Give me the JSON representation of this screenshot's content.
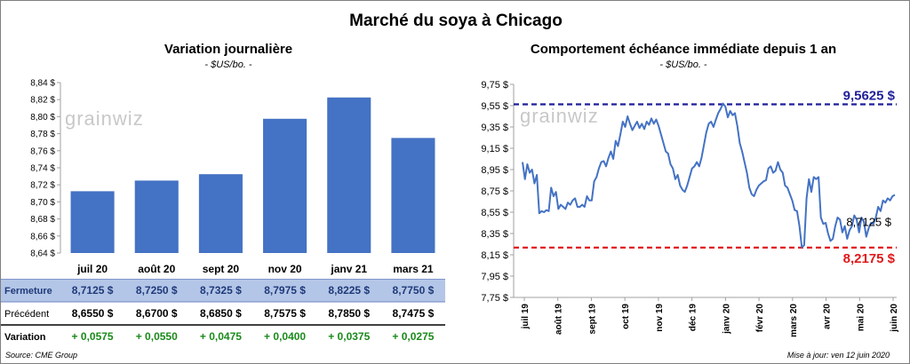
{
  "title": "Marché du soya à Chicago",
  "colors": {
    "bar": "#4472c4",
    "line": "#4472c4",
    "high_line": "#1f1f9a",
    "low_line": "#e0191b",
    "table_header_bg": "#b4c6e7",
    "positive": "#1a8a1a"
  },
  "watermark": "grainwiz",
  "left": {
    "title": "Variation  journalière",
    "unit": "- $US/bo. -",
    "chart_data": {
      "type": "bar",
      "categories": [
        "juil 20",
        "août 20",
        "sept 20",
        "nov 20",
        "janv 21",
        "mars 21"
      ],
      "values": [
        8.7125,
        8.725,
        8.7325,
        8.7975,
        8.8225,
        8.775
      ],
      "ylim": [
        8.64,
        8.84
      ],
      "yticks": [
        "8,64 $",
        "8,66 $",
        "8,68 $",
        "8,70 $",
        "8,72 $",
        "8,74 $",
        "8,76 $",
        "8,78 $",
        "8,80 $",
        "8,82 $",
        "8,84 $"
      ],
      "grid": false
    },
    "table": {
      "rows": [
        {
          "label": "Fermeture",
          "values": [
            "8,7125  $",
            "8,7250  $",
            "8,7325  $",
            "8,7975  $",
            "8,8225  $",
            "8,7750  $"
          ]
        },
        {
          "label": "Précédent",
          "values": [
            "8,6550  $",
            "8,6700  $",
            "8,6850  $",
            "8,7575  $",
            "8,7850  $",
            "8,7475  $"
          ]
        },
        {
          "label": "Variation",
          "values": [
            "+ 0,0575",
            "+ 0,0550",
            "+ 0,0475",
            "+ 0,0400",
            "+ 0,0375",
            "+ 0,0275"
          ]
        }
      ]
    }
  },
  "right": {
    "title": "Comportement  échéance immédiate depuis 1 an",
    "unit": "- $US/bo. -",
    "chart_data": {
      "type": "line",
      "ylim": [
        7.75,
        9.75
      ],
      "yticks": [
        "7,75 $",
        "7,95 $",
        "8,15 $",
        "8,35 $",
        "8,55 $",
        "8,75 $",
        "8,95 $",
        "9,15 $",
        "9,35 $",
        "9,55 $",
        "9,75 $"
      ],
      "xticks": [
        "juil 19",
        "août 19",
        "sept 19",
        "oct 19",
        "nov 19",
        "déc 19",
        "janv 20",
        "févr 20",
        "mars 20",
        "avr 20",
        "mai 20",
        "juin 20"
      ],
      "series": [
        {
          "values": [
            9.02,
            8.86,
            9.0,
            8.92,
            8.95,
            8.82,
            8.9,
            8.54,
            8.56,
            8.55,
            8.57,
            8.56,
            8.78,
            8.7,
            8.74,
            8.58,
            8.62,
            8.6,
            8.58,
            8.64,
            8.62,
            8.66,
            8.68,
            8.6,
            8.6,
            8.62,
            8.6,
            8.7,
            8.66,
            8.66,
            8.84,
            8.88,
            8.96,
            9.02,
            9.03,
            8.98,
            9.06,
            9.12,
            9.05,
            9.22,
            9.17,
            9.28,
            9.4,
            9.35,
            9.45,
            9.38,
            9.32,
            9.36,
            9.4,
            9.34,
            9.38,
            9.33,
            9.4,
            9.37,
            9.43,
            9.38,
            9.42,
            9.36,
            9.28,
            9.2,
            9.12,
            9.1,
            9.0,
            8.96,
            8.86,
            8.9,
            8.8,
            8.76,
            8.74,
            8.8,
            8.88,
            8.96,
            8.98,
            9.02,
            8.98,
            9.06,
            9.18,
            9.3,
            9.38,
            9.4,
            9.35,
            9.42,
            9.48,
            9.52,
            9.57,
            9.54,
            9.44,
            9.5,
            9.46,
            9.48,
            9.36,
            9.2,
            9.12,
            9.02,
            8.92,
            8.78,
            8.72,
            8.7,
            8.76,
            8.8,
            8.82,
            8.84,
            8.85,
            8.96,
            8.98,
            8.92,
            8.94,
            9.02,
            8.95,
            8.92,
            8.8,
            8.78,
            8.72,
            8.66,
            8.57,
            8.56,
            8.42,
            8.22,
            8.24,
            8.68,
            8.86,
            8.74,
            8.88,
            8.86,
            8.88,
            8.5,
            8.44,
            8.45,
            8.35,
            8.28,
            8.3,
            8.42,
            8.5,
            8.48,
            8.36,
            8.42,
            8.3,
            8.38,
            8.42,
            8.52,
            8.48,
            8.36,
            8.5,
            8.46,
            8.32,
            8.4,
            8.45,
            8.44,
            8.5,
            8.6,
            8.56,
            8.66,
            8.64,
            8.68,
            8.66,
            8.7,
            8.7125
          ]
        }
      ],
      "reference_lines": [
        {
          "value": 9.5625,
          "label": "9,5625  $",
          "style": "dashed",
          "color": "#1f1f9a"
        },
        {
          "value": 8.2175,
          "label": "8,2175  $",
          "style": "dashed",
          "color": "#e0191b"
        }
      ],
      "last_value_label": "8,7125 $",
      "grid": false
    }
  },
  "footer": {
    "source": "Source: CME Group",
    "updated": "Mise à jour: ven 12 juin 2020"
  }
}
